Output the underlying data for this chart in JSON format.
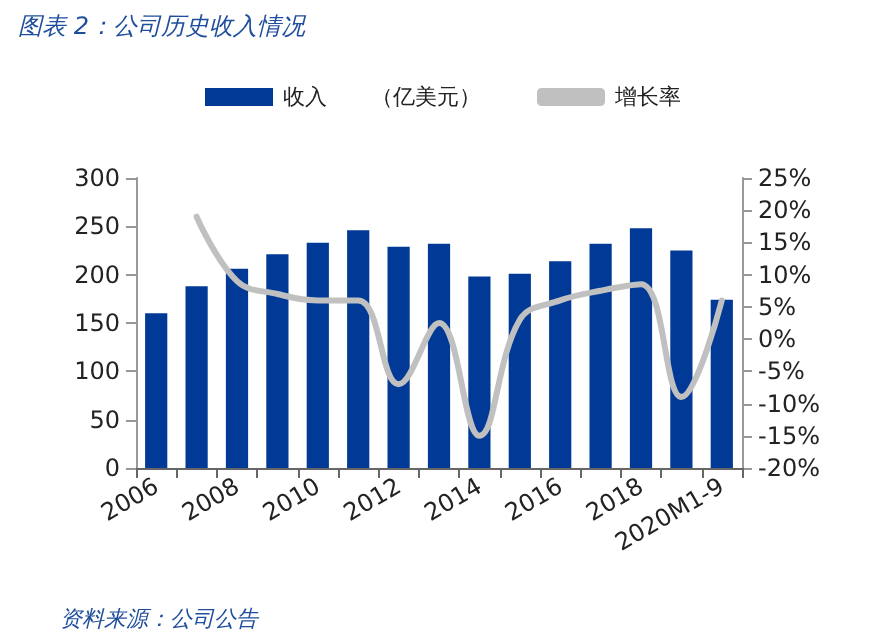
{
  "chart_data": {
    "type": "bar",
    "title": "图表 2：公司历史收入情况",
    "categories": [
      "2006",
      null,
      "2008",
      null,
      "2010",
      null,
      "2012",
      null,
      "2014",
      null,
      "2016",
      null,
      "2018",
      null,
      "2020M1-9"
    ],
    "series": [
      {
        "name": "收入　　（亿美元）",
        "color": "#003a96",
        "values": [
          160,
          188,
          206,
          221,
          233,
          246,
          229,
          232,
          198,
          201,
          214,
          232,
          248,
          225,
          174
        ]
      },
      {
        "name": "增长率",
        "type": "line",
        "axis": "y2",
        "color": "#c0c0c0",
        "values": [
          null,
          19,
          9,
          7,
          6,
          6,
          -7,
          2.5,
          -15,
          3,
          6,
          7.5,
          8.5,
          -9,
          6
        ]
      }
    ],
    "ylim": [
      0,
      300
    ],
    "yticks": [
      0,
      50,
      100,
      150,
      200,
      250,
      300
    ],
    "y2lim": [
      -20,
      25
    ],
    "y2ticks": [
      {
        "value": -20,
        "label": "-20%"
      },
      {
        "value": -15,
        "label": "-15%"
      },
      {
        "value": -10,
        "label": "-10%"
      },
      {
        "value": -5,
        "label": "-5%"
      },
      {
        "value": 0,
        "label": "0%"
      },
      {
        "value": 5,
        "label": "5%"
      },
      {
        "value": 10,
        "label": "10%"
      },
      {
        "value": 15,
        "label": "15%"
      },
      {
        "value": 20,
        "label": "20%"
      },
      {
        "value": 25,
        "label": "25%"
      }
    ],
    "legend": "top",
    "marker": "none",
    "line_style": "solid",
    "annotations": [
      "资料来源：公司公告"
    ]
  }
}
